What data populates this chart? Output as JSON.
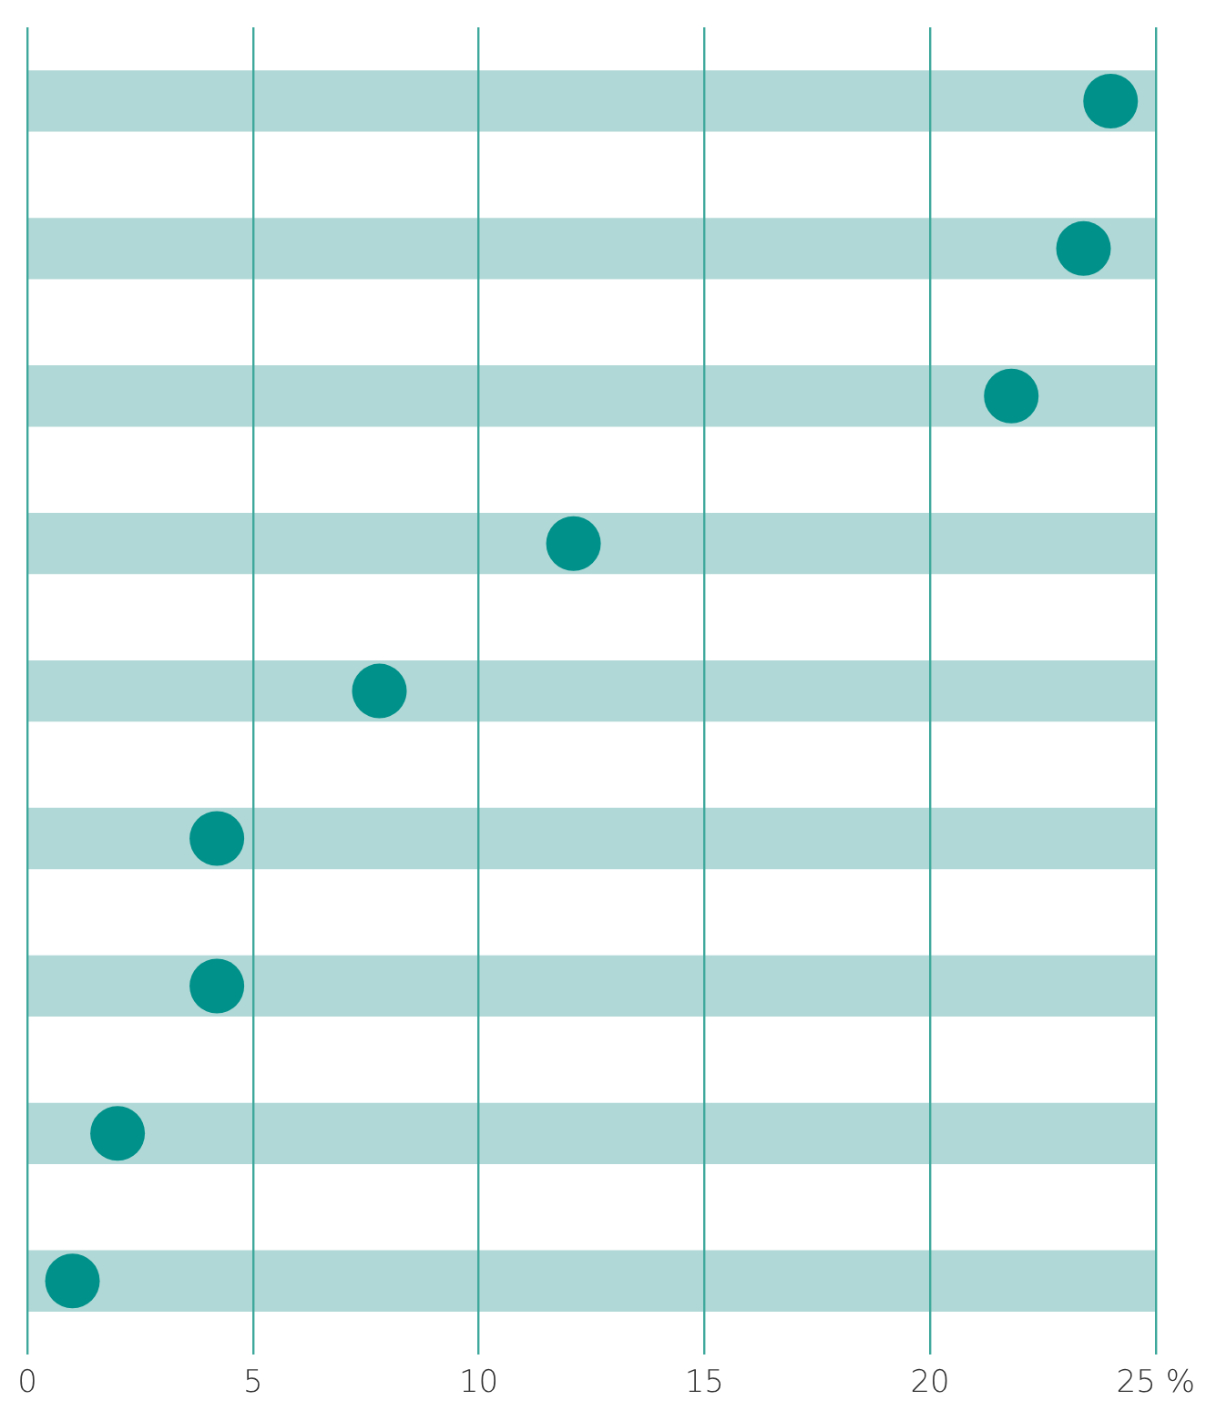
{
  "chart_data": {
    "type": "scatter",
    "orientation": "horizontal",
    "categories": [
      null,
      null,
      null,
      null,
      null,
      null,
      null,
      null,
      null
    ],
    "series": [
      {
        "type": "bar",
        "color": "#b0d8d6",
        "values": [
          25,
          25,
          25,
          25,
          25,
          25,
          25,
          25,
          25
        ]
      },
      {
        "color": "#00918a",
        "values": [
          24.0,
          23.4,
          21.8,
          12.1,
          7.8,
          4.2,
          4.2,
          2.0,
          1.0
        ]
      }
    ],
    "marker": "circle",
    "xlim": [
      0,
      25
    ],
    "xticks": [
      0,
      5,
      10,
      15,
      20,
      {
        "value": 25,
        "label": "25 %"
      }
    ],
    "grid": "x",
    "tick_labels": "x"
  }
}
